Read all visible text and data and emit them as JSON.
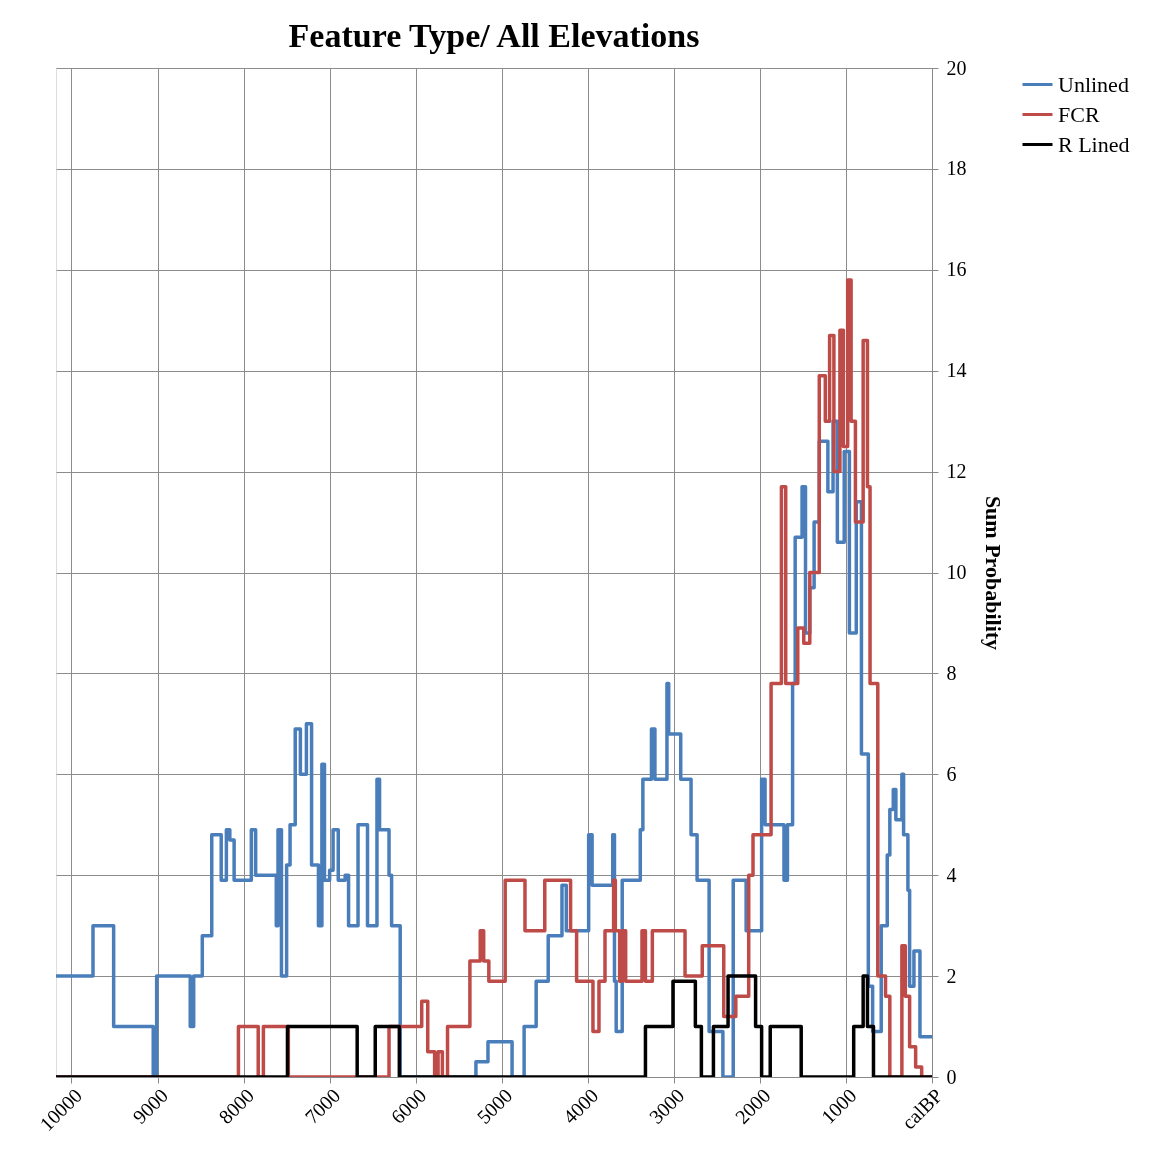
{
  "chart_data": {
    "type": "step",
    "title": "Feature Type/ All Elevations",
    "ylabel": "Sum Probability",
    "xlim": [
      10180,
      0
    ],
    "xticks": [
      10000,
      9000,
      8000,
      7000,
      6000,
      5000,
      4000,
      3000,
      2000,
      1000,
      {
        "value": 0,
        "label": "calBP"
      }
    ],
    "ylim": [
      0,
      20
    ],
    "yticks": [
      0,
      2,
      4,
      6,
      8,
      10,
      12,
      14,
      16,
      18,
      20
    ],
    "grid": true,
    "legend": "right",
    "series": [
      {
        "name": "Unlined",
        "color": "#4a7ebb",
        "x": [
          10180,
          9750,
          9510,
          9050,
          9010,
          8620,
          8580,
          8480,
          8370,
          8260,
          8200,
          8160,
          8110,
          7910,
          7860,
          7620,
          7600,
          7560,
          7500,
          7460,
          7400,
          7340,
          7270,
          7210,
          7130,
          7090,
          7060,
          7000,
          6960,
          6900,
          6820,
          6780,
          6670,
          6560,
          6450,
          6420,
          6310,
          6280,
          6180,
          5300,
          5160,
          4880,
          4740,
          4600,
          4460,
          4300,
          4250,
          3990,
          3950,
          3710,
          3690,
          3670,
          3600,
          3390,
          3360,
          3260,
          3220,
          3080,
          3060,
          2920,
          2800,
          2730,
          2590,
          2430,
          2310,
          2160,
          1980,
          1940,
          1720,
          1680,
          1620,
          1590,
          1510,
          1470,
          1420,
          1370,
          1310,
          1210,
          1150,
          1100,
          1020,
          960,
          880,
          820,
          740,
          690,
          590,
          520,
          490,
          450,
          420,
          350,
          330,
          280,
          260,
          210,
          140,
          0
        ],
        "values": [
          2,
          3,
          1,
          0,
          2,
          1,
          2,
          2.8,
          4.8,
          3.9,
          4.9,
          4.7,
          3.9,
          4.9,
          4,
          3,
          4.9,
          2,
          4.2,
          5,
          6.9,
          6,
          7,
          4.2,
          3,
          6.2,
          3.9,
          4.1,
          4.9,
          3.9,
          4,
          3,
          5,
          3,
          5.9,
          4.9,
          4,
          3,
          0,
          0.3,
          0.7,
          0,
          1,
          1.9,
          2.8,
          3.8,
          2.9,
          4.8,
          3.8,
          4.8,
          1.9,
          0.9,
          3.9,
          4.9,
          5.9,
          6.9,
          5.9,
          7.8,
          6.8,
          5.9,
          4.8,
          3.9,
          0.9,
          0,
          3.9,
          2.9,
          5.9,
          5,
          3.9,
          5,
          7.8,
          10.7,
          11.7,
          8.8,
          9.7,
          11,
          12.6,
          11.6,
          13,
          10.6,
          12.4,
          8.8,
          11.4,
          6.4,
          1.8,
          0.9,
          3,
          4.4,
          5.3,
          5.7,
          5.1,
          6,
          4.8,
          3.7,
          1.8,
          2.5,
          0.8,
          0.8
        ]
      },
      {
        "name": "FCR",
        "color": "#be4b48",
        "x": [
          10180,
          8060,
          7830,
          7770,
          7480,
          6310,
          5930,
          5860,
          5780,
          5740,
          5690,
          5630,
          5370,
          5250,
          5210,
          5150,
          4960,
          4730,
          4500,
          4200,
          4130,
          3940,
          3870,
          3800,
          3700,
          3680,
          3630,
          3600,
          3560,
          3370,
          3330,
          3250,
          2870,
          2670,
          2420,
          2280,
          2130,
          2080,
          1870,
          1750,
          1700,
          1560,
          1490,
          1420,
          1310,
          1240,
          1190,
          1140,
          1070,
          1030,
          980,
          940,
          890,
          800,
          750,
          720,
          630,
          540,
          490,
          350,
          310,
          260,
          190,
          120,
          0
        ],
        "values": [
          0,
          1,
          0,
          1,
          0,
          1,
          1.5,
          0.5,
          0,
          0.5,
          0,
          1,
          2.3,
          2.9,
          2.3,
          1.9,
          3.9,
          2.9,
          3.9,
          2.9,
          1.9,
          0.9,
          1.9,
          2.9,
          3.9,
          2.9,
          1.9,
          2.9,
          1.9,
          2.9,
          1.9,
          2.9,
          2,
          2.6,
          1.2,
          1.6,
          4,
          4.8,
          7.8,
          11.7,
          7.8,
          8.9,
          8.6,
          10,
          13.9,
          13,
          14.7,
          12,
          14.8,
          12.5,
          15.8,
          13,
          11,
          14.6,
          11.7,
          7.8,
          2,
          1.6,
          0,
          2.6,
          1.6,
          0.6,
          0.2,
          0,
          0
        ]
      },
      {
        "name": "R Lined",
        "color": "#000000",
        "x": [
          10180,
          7490,
          6680,
          6470,
          6190,
          3330,
          3010,
          2750,
          2680,
          2540,
          2370,
          2050,
          1980,
          1880,
          1520,
          910,
          800,
          750,
          680,
          0
        ],
        "values": [
          0,
          1,
          0,
          1,
          0,
          1,
          1.9,
          1,
          0,
          1,
          2,
          1,
          0,
          1,
          0,
          1,
          2,
          1,
          0,
          0
        ]
      }
    ]
  }
}
